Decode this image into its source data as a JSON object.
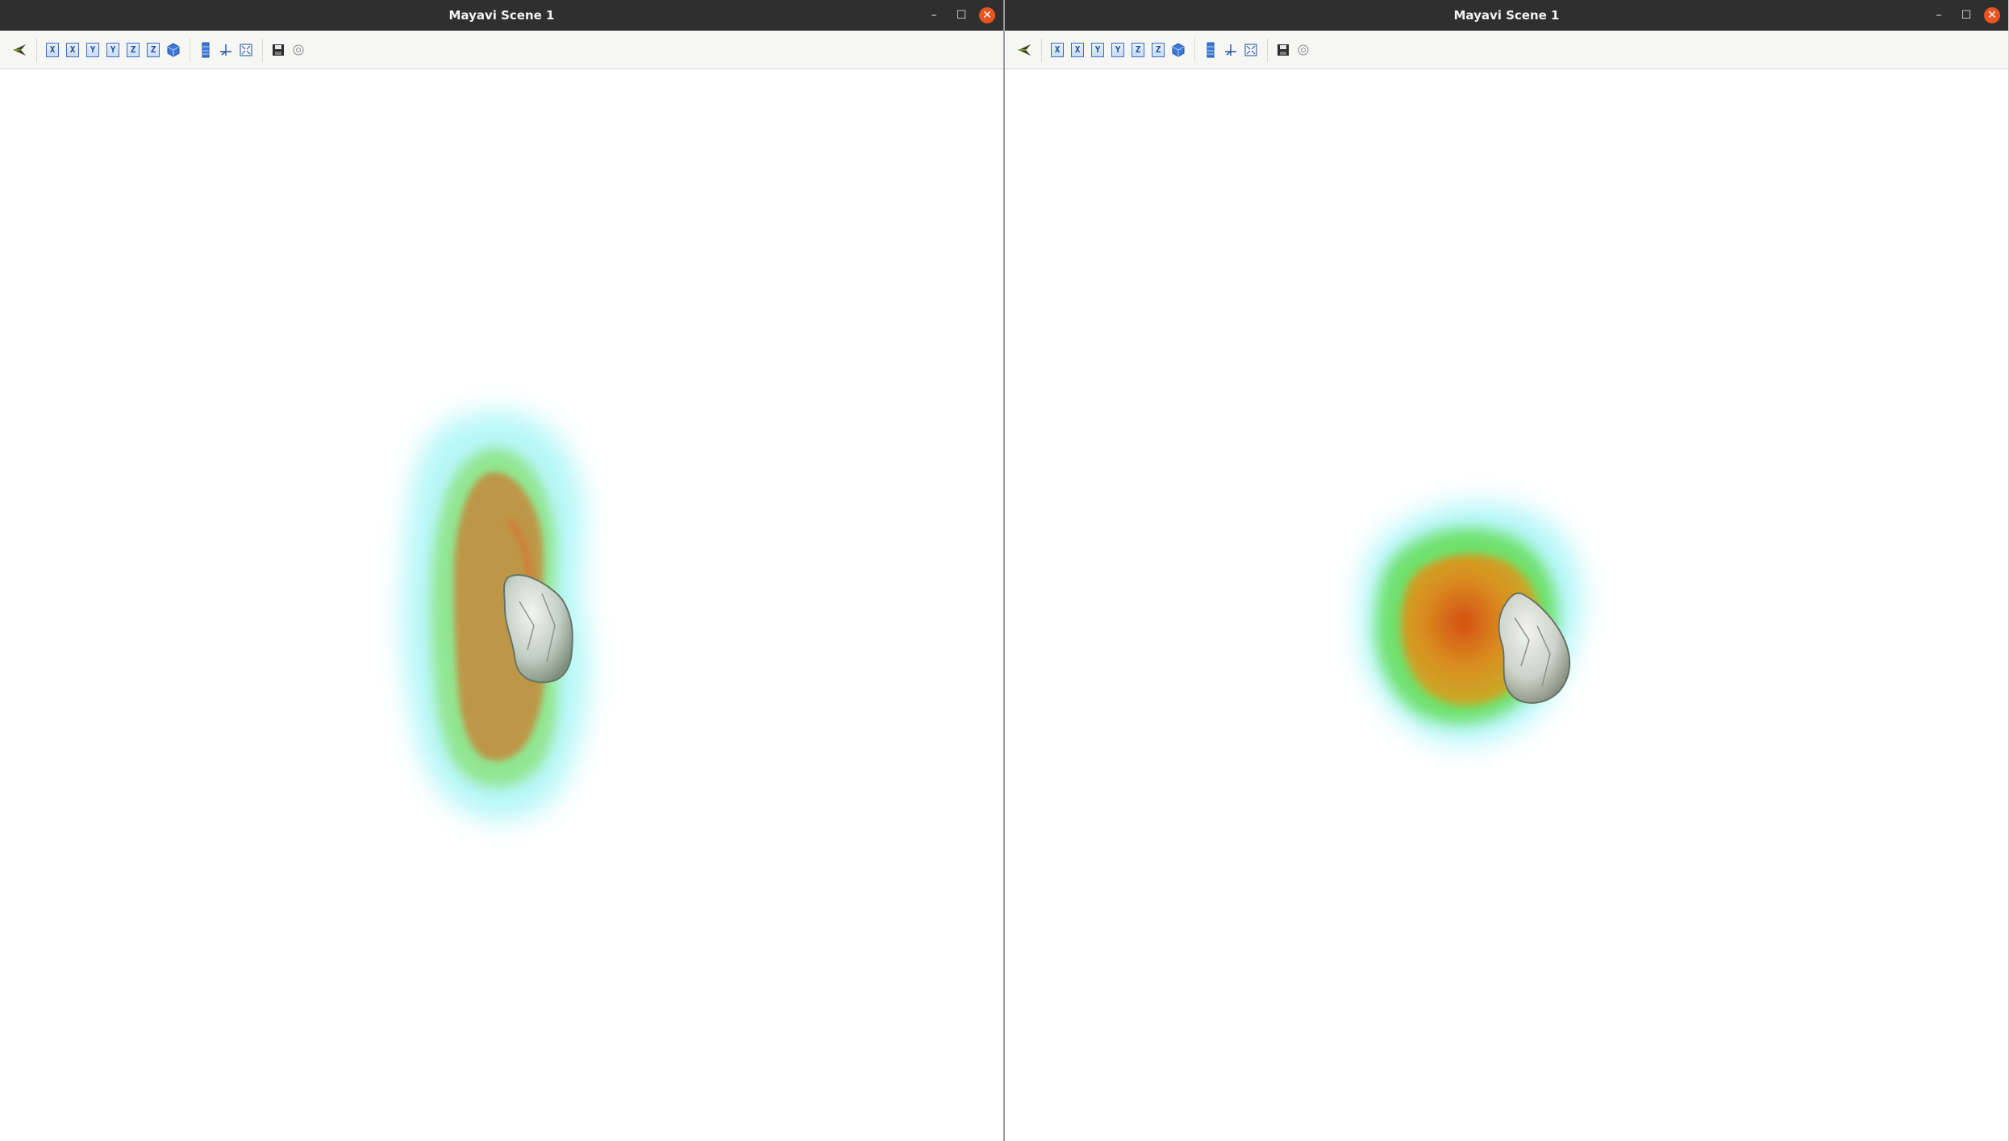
{
  "windows": [
    {
      "title": "Mayavi Scene 1",
      "controls": {
        "minimize": "–",
        "maximize": "☐",
        "close": "✕"
      },
      "toolbar": {
        "axis_views": [
          "X",
          "X",
          "Y",
          "Y",
          "Z",
          "Z"
        ]
      }
    },
    {
      "title": "Mayavi Scene 1",
      "controls": {
        "minimize": "–",
        "maximize": "☐",
        "close": "✕"
      },
      "toolbar": {
        "axis_views": [
          "X",
          "X",
          "Y",
          "Y",
          "Z",
          "Z"
        ]
      }
    }
  ],
  "icons": {
    "toolbar": [
      "mayavi-logo-icon",
      "view-x-minus-icon",
      "view-x-plus-icon",
      "view-y-minus-icon",
      "view-y-plus-icon",
      "view-z-minus-icon",
      "view-z-plus-icon",
      "isometric-view-icon",
      "parallel-projection-icon",
      "axes-indicator-icon",
      "full-screen-icon",
      "save-icon",
      "configure-icon"
    ]
  },
  "colors": {
    "titlebar": "#2f2f2f",
    "close_button": "#e95420",
    "toolbar_bg": "#f6f6f5",
    "scene_bg": "#ffffff",
    "volume_outer": "#6ff3f0",
    "volume_mid": "#7fe36a",
    "volume_inner": "#c9761c",
    "surface": "#cfd8cf"
  }
}
